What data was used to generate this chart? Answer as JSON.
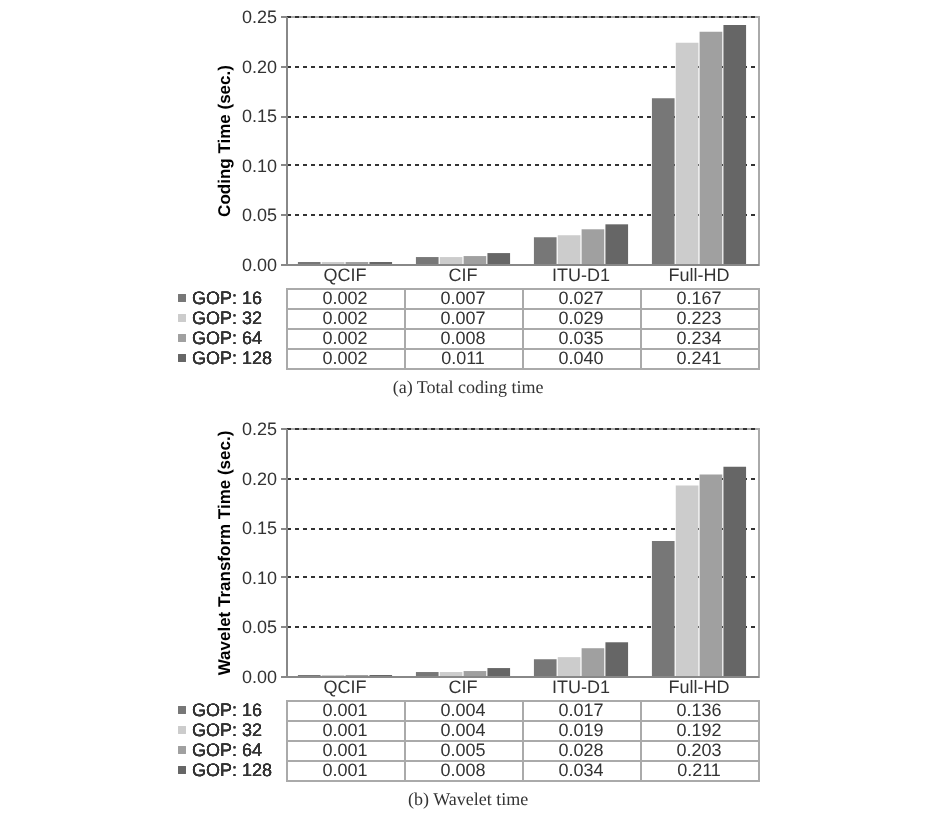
{
  "chart_data": [
    {
      "type": "bar",
      "ylabel": "Coding Time (sec.)",
      "categories": [
        "QCIF",
        "CIF",
        "ITU-D1",
        "Full-HD"
      ],
      "series": [
        {
          "name": "GOP: 16",
          "color": "#777777",
          "values": [
            0.002,
            0.007,
            0.027,
            0.167
          ],
          "value_labels": [
            "0.002",
            "0.007",
            "0.027",
            "0.167"
          ]
        },
        {
          "name": "GOP: 32",
          "color": "#cccccc",
          "values": [
            0.002,
            0.007,
            0.029,
            0.223
          ],
          "value_labels": [
            "0.002",
            "0.007",
            "0.029",
            "0.223"
          ]
        },
        {
          "name": "GOP: 64",
          "color": "#a0a0a0",
          "values": [
            0.002,
            0.008,
            0.035,
            0.234
          ],
          "value_labels": [
            "0.002",
            "0.008",
            "0.035",
            "0.234"
          ]
        },
        {
          "name": "GOP: 128",
          "color": "#666666",
          "values": [
            0.002,
            0.011,
            0.04,
            0.241
          ],
          "value_labels": [
            "0.002",
            "0.011",
            "0.040",
            "0.241"
          ]
        }
      ],
      "ylim": [
        0,
        0.25
      ],
      "yticks": [
        {
          "value": 0,
          "label": "0.00"
        },
        {
          "value": 0.05,
          "label": "0.05"
        },
        {
          "value": 0.1,
          "label": "0.10"
        },
        {
          "value": 0.15,
          "label": "0.15"
        },
        {
          "value": 0.2,
          "label": "0.20"
        },
        {
          "value": 0.25,
          "label": "0.25"
        }
      ],
      "grid": "y",
      "legend": "bottom",
      "annotations": [
        "(a) Total coding time"
      ]
    },
    {
      "type": "bar",
      "ylabel": "Wavelet Transform Time (sec.)",
      "categories": [
        "QCIF",
        "CIF",
        "ITU-D1",
        "Full-HD"
      ],
      "series": [
        {
          "name": "GOP: 16",
          "color": "#777777",
          "values": [
            0.001,
            0.004,
            0.017,
            0.136
          ],
          "value_labels": [
            "0.001",
            "0.004",
            "0.017",
            "0.136"
          ]
        },
        {
          "name": "GOP: 32",
          "color": "#cccccc",
          "values": [
            0.001,
            0.004,
            0.019,
            0.192
          ],
          "value_labels": [
            "0.001",
            "0.004",
            "0.019",
            "0.192"
          ]
        },
        {
          "name": "GOP: 64",
          "color": "#a0a0a0",
          "values": [
            0.001,
            0.005,
            0.028,
            0.203
          ],
          "value_labels": [
            "0.001",
            "0.005",
            "0.028",
            "0.203"
          ]
        },
        {
          "name": "GOP: 128",
          "color": "#666666",
          "values": [
            0.001,
            0.008,
            0.034,
            0.211
          ],
          "value_labels": [
            "0.001",
            "0.008",
            "0.034",
            "0.211"
          ]
        }
      ],
      "ylim": [
        0,
        0.25
      ],
      "yticks": [
        {
          "value": 0,
          "label": "0.00"
        },
        {
          "value": 0.05,
          "label": "0.05"
        },
        {
          "value": 0.1,
          "label": "0.10"
        },
        {
          "value": 0.15,
          "label": "0.15"
        },
        {
          "value": 0.2,
          "label": "0.20"
        },
        {
          "value": 0.25,
          "label": "0.25"
        }
      ],
      "grid": "y",
      "legend": "bottom",
      "annotations": [
        "(b) Wavelet time"
      ]
    }
  ]
}
